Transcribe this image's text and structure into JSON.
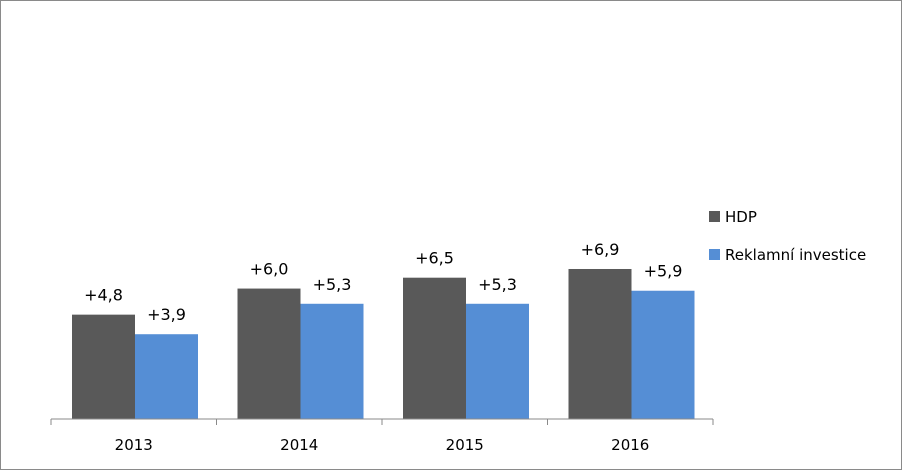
{
  "chart_data": {
    "type": "bar",
    "categories": [
      "2013",
      "2014",
      "2015",
      "2016"
    ],
    "series": [
      {
        "name": "HDP",
        "values": [
          4.8,
          6.0,
          6.5,
          6.9
        ],
        "labels": [
          "+4,8",
          "+6,0",
          "+6,5",
          "+6,9"
        ],
        "color": "#595959"
      },
      {
        "name": "Reklamní investice",
        "values": [
          3.9,
          5.3,
          5.3,
          5.9
        ],
        "labels": [
          "+3,9",
          "+5,3",
          "+5,3",
          "+5,9"
        ],
        "color": "#558ED5"
      }
    ],
    "title": "",
    "xlabel": "",
    "ylabel": "",
    "ylim": [
      0,
      10
    ],
    "grid": false,
    "legend_position": "right"
  }
}
